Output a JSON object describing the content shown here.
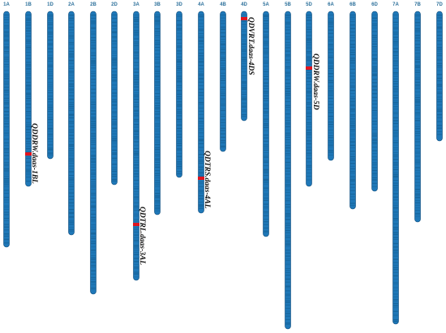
{
  "colors": {
    "chromosome": "#1f78b8",
    "chromosome_outline": "#0d4a79",
    "band": "#0f5687",
    "qtl_marker": "#e0141e",
    "label": "#2b6f9a",
    "qtl_text": "#111111"
  },
  "chromosomes": [
    {
      "name": "1A"
    },
    {
      "name": "1B"
    },
    {
      "name": "1D"
    },
    {
      "name": "2A"
    },
    {
      "name": "2B"
    },
    {
      "name": "2D"
    },
    {
      "name": "3A"
    },
    {
      "name": "3B"
    },
    {
      "name": "3D"
    },
    {
      "name": "4A"
    },
    {
      "name": "4B"
    },
    {
      "name": "4D"
    },
    {
      "name": "5A"
    },
    {
      "name": "5B"
    },
    {
      "name": "5D"
    },
    {
      "name": "6A"
    },
    {
      "name": "6B"
    },
    {
      "name": "6D"
    },
    {
      "name": "7A"
    },
    {
      "name": "7B"
    },
    {
      "name": "7D"
    }
  ],
  "qtls": [
    {
      "name": "QDDRW.daas-1BL",
      "chromosome": "1B"
    },
    {
      "name": "QDTRL.daas-3AL",
      "chromosome": "3A"
    },
    {
      "name": "QDTRS.daas-4AL",
      "chromosome": "4A"
    },
    {
      "name": "QDVRT.daas-4DS",
      "chromosome": "4D"
    },
    {
      "name": "QDDRW.daas-5D",
      "chromosome": "5D"
    }
  ]
}
